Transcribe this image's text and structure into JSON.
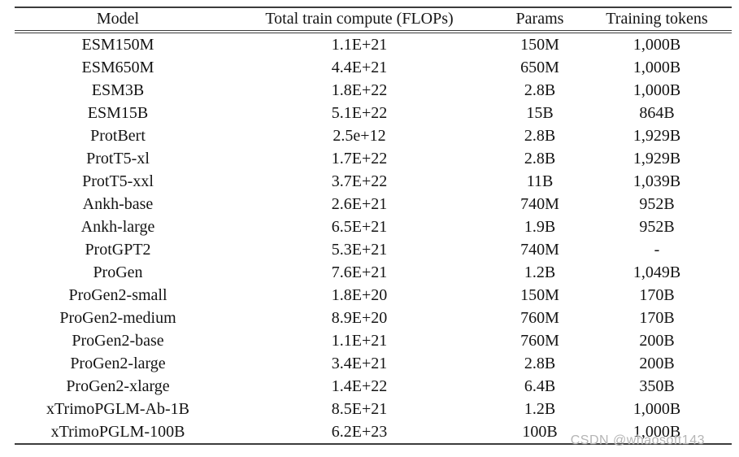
{
  "table": {
    "columns": [
      "Model",
      "Total train compute (FLOPs)",
      "Params",
      "Training tokens"
    ],
    "rows": [
      [
        "ESM150M",
        "1.1E+21",
        "150M",
        "1,000B"
      ],
      [
        "ESM650M",
        "4.4E+21",
        "650M",
        "1,000B"
      ],
      [
        "ESM3B",
        "1.8E+22",
        "2.8B",
        "1,000B"
      ],
      [
        "ESM15B",
        "5.1E+22",
        "15B",
        "864B"
      ],
      [
        "ProtBert",
        "2.5e+12",
        "2.8B",
        "1,929B"
      ],
      [
        "ProtT5-xl",
        "1.7E+22",
        "2.8B",
        "1,929B"
      ],
      [
        "ProtT5-xxl",
        "3.7E+22",
        "11B",
        "1,039B"
      ],
      [
        "Ankh-base",
        "2.6E+21",
        "740M",
        "952B"
      ],
      [
        "Ankh-large",
        "6.5E+21",
        "1.9B",
        "952B"
      ],
      [
        "ProtGPT2",
        "5.3E+21",
        "740M",
        "-"
      ],
      [
        "ProGen",
        "7.6E+21",
        "1.2B",
        "1,049B"
      ],
      [
        "ProGen2-small",
        "1.8E+20",
        "150M",
        "170B"
      ],
      [
        "ProGen2-medium",
        "8.9E+20",
        "760M",
        "170B"
      ],
      [
        "ProGen2-base",
        "1.1E+21",
        "760M",
        "200B"
      ],
      [
        "ProGen2-large",
        "3.4E+21",
        "2.8B",
        "200B"
      ],
      [
        "ProGen2-xlarge",
        "1.4E+22",
        "6.4B",
        "350B"
      ],
      [
        "xTrimoPGLM-Ab-1B",
        "8.5E+21",
        "1.2B",
        "1,000B"
      ],
      [
        "xTrimoPGLM-100B",
        "6.2E+23",
        "100B",
        "1,000B"
      ]
    ]
  },
  "watermark": {
    "text": "CSDN @whaosoft143"
  },
  "colors": {
    "background": "#ffffff",
    "text": "#141414",
    "rule": "#3c3c3c",
    "watermark": "#b5b5b5"
  }
}
